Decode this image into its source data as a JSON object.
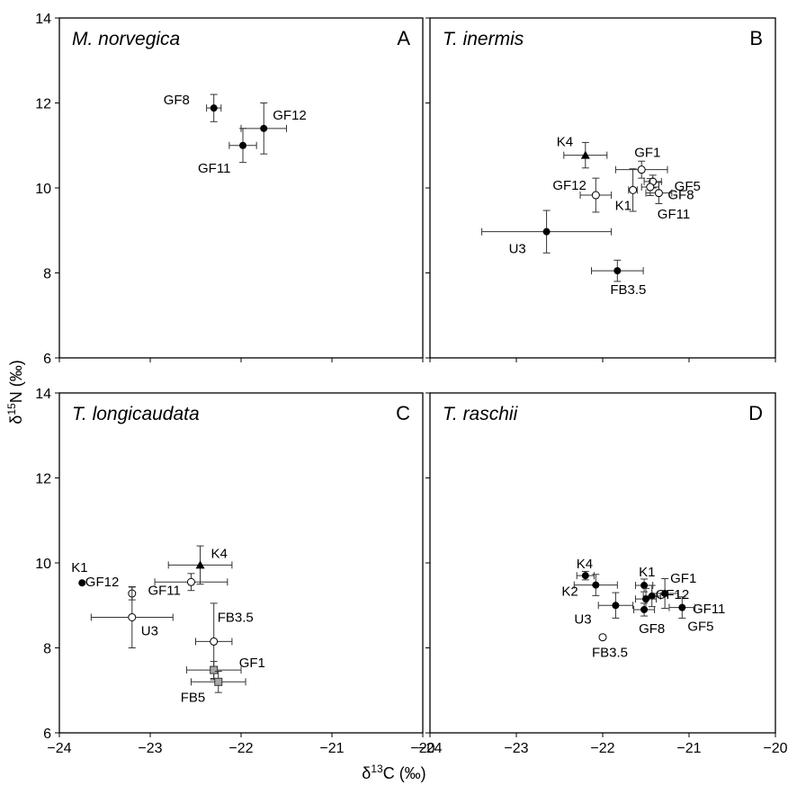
{
  "figure": {
    "ylabel": "δ15N (‰)",
    "xlabel": "δ13C (‰)"
  },
  "chart_data": [
    {
      "type": "scatter",
      "panel": "A",
      "title": "M. norvegica",
      "xlim": [
        -24,
        -20
      ],
      "ylim": [
        6,
        14
      ],
      "xticks": [
        "−24",
        "−23",
        "−22",
        "−21",
        "−20"
      ],
      "yticks": [
        "6",
        "8",
        "10",
        "12",
        "14"
      ],
      "points": [
        {
          "label": "GF8",
          "x": -22.3,
          "y": 11.88,
          "xerr": 0.08,
          "yerr": 0.32,
          "marker": "filled-circle"
        },
        {
          "label": "GF12",
          "x": -21.75,
          "y": 11.4,
          "xerr": 0.25,
          "yerr": 0.6,
          "marker": "filled-circle"
        },
        {
          "label": "GF11",
          "x": -21.98,
          "y": 11.0,
          "xerr": 0.15,
          "yerr": 0.4,
          "marker": "filled-circle"
        }
      ]
    },
    {
      "type": "scatter",
      "panel": "B",
      "title": "T. inermis",
      "xlim": [
        -24,
        -20
      ],
      "ylim": [
        6,
        14
      ],
      "xticks": [
        "−24",
        "−23",
        "−22",
        "−21",
        "−20"
      ],
      "yticks": [
        "6",
        "8",
        "10",
        "12",
        "14"
      ],
      "points": [
        {
          "label": "K4",
          "x": -22.2,
          "y": 10.77,
          "xerr": 0.25,
          "yerr": 0.3,
          "marker": "filled-triangle"
        },
        {
          "label": "GF1",
          "x": -21.55,
          "y": 10.43,
          "xerr": 0.3,
          "yerr": 0.2,
          "marker": "open-circle"
        },
        {
          "label": "GF5",
          "x": -21.42,
          "y": 10.15,
          "xerr": 0.1,
          "yerr": 0.15,
          "marker": "open-circle"
        },
        {
          "label": "GF8",
          "x": -21.35,
          "y": 9.88,
          "xerr": 0.15,
          "yerr": 0.25,
          "marker": "open-circle"
        },
        {
          "label": "GF11",
          "x": -21.45,
          "y": 10.02,
          "xerr": 0.1,
          "yerr": 0.2,
          "marker": "open-circle"
        },
        {
          "label": "GF12",
          "x": -22.08,
          "y": 9.83,
          "xerr": 0.18,
          "yerr": 0.4,
          "marker": "open-circle"
        },
        {
          "label": "K1",
          "x": -21.65,
          "y": 9.95,
          "xerr": 0.05,
          "yerr": 0.5,
          "marker": "open-circle"
        },
        {
          "label": "U3",
          "x": -22.65,
          "y": 8.97,
          "xerr": 0.75,
          "yerr": 0.5,
          "marker": "filled-circle"
        },
        {
          "label": "FB3.5",
          "x": -21.83,
          "y": 8.05,
          "xerr": 0.3,
          "yerr": 0.25,
          "marker": "filled-circle"
        }
      ]
    },
    {
      "type": "scatter",
      "panel": "C",
      "title": "T. longicaudata",
      "xlim": [
        -24,
        -20
      ],
      "ylim": [
        6,
        14
      ],
      "xticks": [
        "−24",
        "−23",
        "−22",
        "−21",
        "−20"
      ],
      "yticks": [
        "6",
        "8",
        "10",
        "12",
        "14"
      ],
      "points": [
        {
          "label": "K4",
          "x": -22.45,
          "y": 9.95,
          "xerr": 0.35,
          "yerr": 0.45,
          "marker": "filled-triangle"
        },
        {
          "label": "K1",
          "x": -23.75,
          "y": 9.53,
          "xerr": 0,
          "yerr": 0,
          "marker": "filled-circle"
        },
        {
          "label": "GF12",
          "x": -23.2,
          "y": 9.28,
          "xerr": 0,
          "yerr": 0.15,
          "marker": "open-circle"
        },
        {
          "label": "GF11",
          "x": -22.55,
          "y": 9.55,
          "xerr": 0.4,
          "yerr": 0.2,
          "marker": "open-circle"
        },
        {
          "label": "U3",
          "x": -23.2,
          "y": 8.72,
          "xerr": 0.45,
          "yerr": 0.72,
          "marker": "open-circle"
        },
        {
          "label": "FB3.5",
          "x": -22.3,
          "y": 8.15,
          "xerr": 0.2,
          "yerr": 0.9,
          "marker": "open-circle"
        },
        {
          "label": "GF1",
          "x": -22.3,
          "y": 7.48,
          "xerr": 0.3,
          "yerr": 0.2,
          "marker": "gray-square"
        },
        {
          "label": "FB5",
          "x": -22.25,
          "y": 7.2,
          "xerr": 0.3,
          "yerr": 0.25,
          "marker": "gray-square"
        }
      ]
    },
    {
      "type": "scatter",
      "panel": "D",
      "title": "T. raschii",
      "xlim": [
        -24,
        -20
      ],
      "ylim": [
        6,
        14
      ],
      "xticks": [
        "−24",
        "−23",
        "−22",
        "−21",
        "−20"
      ],
      "yticks": [
        "6",
        "8",
        "10",
        "12",
        "14"
      ],
      "points": [
        {
          "label": "K4",
          "x": -22.2,
          "y": 9.7,
          "xerr": 0.1,
          "yerr": 0.1,
          "marker": "filled-circle"
        },
        {
          "label": "K2",
          "x": -22.08,
          "y": 9.48,
          "xerr": 0.25,
          "yerr": 0.25,
          "marker": "filled-circle"
        },
        {
          "label": "K1",
          "x": -21.52,
          "y": 9.47,
          "xerr": 0.1,
          "yerr": 0.15,
          "marker": "filled-circle"
        },
        {
          "label": "GF1",
          "x": -21.28,
          "y": 9.28,
          "xerr": 0.15,
          "yerr": 0.35,
          "marker": "filled-circle"
        },
        {
          "label": "GF12",
          "x": -21.43,
          "y": 9.22,
          "xerr": 0.1,
          "yerr": 0.25,
          "marker": "filled-circle"
        },
        {
          "label": "GF11",
          "x": -21.5,
          "y": 9.15,
          "xerr": 0.12,
          "yerr": 0.25,
          "marker": "filled-circle"
        },
        {
          "label": "U3",
          "x": -21.85,
          "y": 9.0,
          "xerr": 0.2,
          "yerr": 0.3,
          "marker": "filled-circle"
        },
        {
          "label": "GF8",
          "x": -21.52,
          "y": 8.9,
          "xerr": 0.12,
          "yerr": 0.15,
          "marker": "filled-circle"
        },
        {
          "label": "GF5",
          "x": -21.08,
          "y": 8.95,
          "xerr": 0.15,
          "yerr": 0.25,
          "marker": "filled-circle"
        },
        {
          "label": "FB3.5",
          "x": -22.0,
          "y": 8.25,
          "xerr": 0,
          "yerr": 0,
          "marker": "open-circle"
        }
      ]
    }
  ]
}
